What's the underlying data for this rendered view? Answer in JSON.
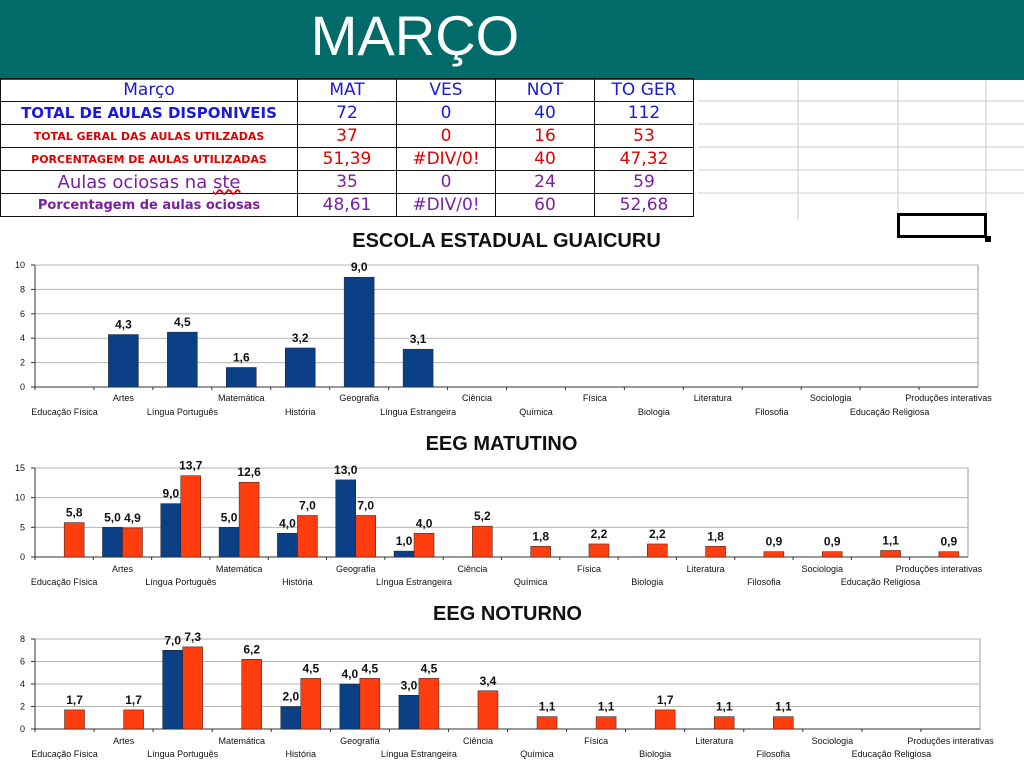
{
  "banner": {
    "title": "MARÇO"
  },
  "colors": {
    "banner_bg": "#006b68",
    "series_mat": "#0b3f86",
    "series_other": "#ff3d0f"
  },
  "table": {
    "header": {
      "label": "Março",
      "cols": [
        "MAT",
        "VES",
        "NOT",
        "TO GER"
      ]
    },
    "rows": [
      {
        "label": "TOTAL DE AULAS DISPONIVEIS",
        "values": [
          "72",
          "0",
          "40",
          "112"
        ]
      },
      {
        "label": "TOTAL GERAL DAS AULAS UTILZADAS",
        "values": [
          "37",
          "0",
          "16",
          "53"
        ]
      },
      {
        "label": "PORCENTAGEM DE AULAS UTILIZADAS",
        "values": [
          "51,39",
          "#DIV/0!",
          "40",
          "47,32"
        ]
      },
      {
        "label": "Aulas ociosas na ste",
        "values": [
          "35",
          "0",
          "24",
          "59"
        ]
      },
      {
        "label": "Porcentagem de aulas ociosas",
        "values": [
          "48,61",
          "#DIV/0!",
          "60",
          "52,68"
        ]
      }
    ]
  },
  "chart_data": [
    {
      "type": "bar",
      "title": "ESCOLA ESTADUAL GUAICURU",
      "categories": [
        "Educação Física",
        "Artes",
        "Língua Português",
        "Matemática",
        "História",
        "Geografia",
        "Língua Estrangeira",
        "Ciência",
        "Química",
        "Física",
        "Biologia",
        "Literatura",
        "Filosofia",
        "Sociologia",
        "Educação Religiosa",
        "Produções interativas"
      ],
      "ylim": [
        0,
        10
      ],
      "yticks": [
        0,
        2,
        4,
        6,
        8,
        10
      ],
      "grid": true,
      "series": [
        {
          "values": [
            null,
            4.3,
            4.5,
            1.6,
            3.2,
            9.0,
            3.1,
            null,
            null,
            null,
            null,
            null,
            null,
            null,
            null,
            null
          ],
          "labels": [
            null,
            "4,3",
            "4,5",
            "1,6",
            "3,2",
            "9,0",
            "3,1",
            null,
            null,
            null,
            null,
            null,
            null,
            null,
            null,
            null
          ]
        }
      ]
    },
    {
      "type": "bar",
      "title": "EEG MATUTINO",
      "categories": [
        "Educação Física",
        "Artes",
        "Língua Português",
        "Matemática",
        "História",
        "Geografia",
        "Língua Estrangeira",
        "Ciência",
        "Química",
        "Física",
        "Biologia",
        "Literatura",
        "Filosofia",
        "Sociologia",
        "Educação Religiosa",
        "Produções interativas"
      ],
      "ylim": [
        0,
        15
      ],
      "yticks": [
        0,
        5,
        10,
        15
      ],
      "grid": true,
      "series": [
        {
          "values": [
            null,
            5.0,
            9.0,
            5.0,
            4.0,
            13.0,
            1.0,
            null,
            null,
            null,
            null,
            null,
            null,
            null,
            null,
            null
          ],
          "labels": [
            null,
            "5,0",
            "9,0",
            "5,0",
            "4,0",
            "13,0",
            "1,0",
            null,
            null,
            null,
            null,
            null,
            null,
            null,
            null,
            null
          ]
        },
        {
          "values": [
            5.8,
            4.9,
            13.7,
            12.6,
            7.0,
            7.0,
            4.0,
            5.2,
            1.8,
            2.2,
            2.2,
            1.8,
            0.9,
            0.9,
            1.1,
            0.9
          ],
          "labels": [
            "5,8",
            "4,9",
            "13,7",
            "12,6",
            "7,0",
            "7,0",
            "4,0",
            "5,2",
            "1,8",
            "2,2",
            "2,2",
            "1,8",
            "0,9",
            "0,9",
            "1,1",
            "0,9"
          ]
        }
      ]
    },
    {
      "type": "bar",
      "title": "EEG NOTURNO",
      "categories": [
        "Educação Física",
        "Artes",
        "Língua Português",
        "Matemática",
        "História",
        "Geografia",
        "Língua Estrangeira",
        "Ciência",
        "Química",
        "Física",
        "Biologia",
        "Literatura",
        "Filosofia",
        "Sociologia",
        "Educação Religiosa",
        "Produções interativas"
      ],
      "ylim": [
        0,
        8
      ],
      "yticks": [
        0,
        2,
        4,
        6,
        8
      ],
      "grid": true,
      "series": [
        {
          "values": [
            null,
            null,
            7.0,
            null,
            2.0,
            4.0,
            3.0,
            null,
            null,
            null,
            null,
            null,
            null,
            null,
            null,
            null
          ],
          "labels": [
            null,
            null,
            "7,0",
            null,
            "2,0",
            "4,0",
            "3,0",
            null,
            null,
            null,
            null,
            null,
            null,
            null,
            null,
            null
          ]
        },
        {
          "values": [
            1.7,
            1.7,
            7.3,
            6.2,
            4.5,
            4.5,
            4.5,
            3.4,
            1.1,
            1.1,
            1.7,
            1.1,
            1.1,
            null,
            null,
            null
          ],
          "labels": [
            "1,7",
            "1,7",
            "7,3",
            "6,2",
            "4,5",
            "4,5",
            "4,5",
            "3,4",
            "1,1",
            "1,1",
            "1,7",
            "1,1",
            "1,1",
            null,
            null,
            null
          ]
        }
      ]
    }
  ]
}
